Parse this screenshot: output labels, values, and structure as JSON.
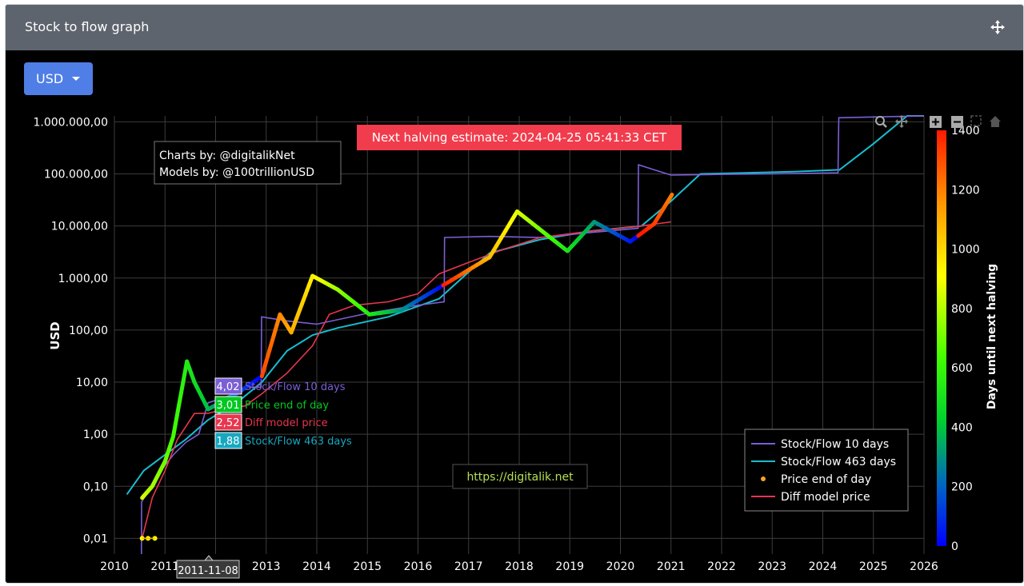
{
  "panel": {
    "title": "Stock to flow graph",
    "move_icon": "move-arrows-icon"
  },
  "currency_button": {
    "label": "USD",
    "icon": "caret-down-icon"
  },
  "modebar": [
    "zoom-icon",
    "pan-icon",
    "zoom-in-icon",
    "zoom-out-icon",
    "autoscale-icon",
    "home-icon"
  ],
  "halving_banner": "Next halving estimate: 2024-04-25 05:41:33 CET",
  "credits": [
    "Charts by: @digitalikNet",
    "Models by: @100trillionUSD"
  ],
  "watermark": "https://digitalik.net",
  "hover": {
    "date": "2011-11-08",
    "items": [
      {
        "value": "4,02",
        "label": "Stock/Flow 10 days",
        "color": "#7b5fd6"
      },
      {
        "value": "3,01",
        "label": "Price end of day",
        "color": "#00c820"
      },
      {
        "value": "2,52",
        "label": "Diff model price",
        "color": "#e8364e"
      },
      {
        "value": "1,88",
        "label": "Stock/Flow 463 days",
        "color": "#17a8c0"
      }
    ]
  },
  "colors": {
    "sf10": "#7b5fd6",
    "sf463": "#17becf",
    "diff": "#e8364e",
    "dot": "#f5a623",
    "halving_banner_bg": "#f03c4c"
  },
  "chart_data": {
    "type": "line",
    "ylabel": "USD",
    "y_scale": "log",
    "ylim": [
      0.005,
      1300000
    ],
    "xlim": [
      "2010-01-01",
      "2026-01-01"
    ],
    "x_ticks": [
      "2010",
      "2011",
      "2012",
      "2013",
      "2014",
      "2015",
      "2016",
      "2017",
      "2018",
      "2019",
      "2020",
      "2021",
      "2022",
      "2023",
      "2024",
      "2025",
      "2026"
    ],
    "y_ticks": [
      {
        "value": 0.01,
        "label": "0,01"
      },
      {
        "value": 0.1,
        "label": "0,10"
      },
      {
        "value": 1,
        "label": "1,00"
      },
      {
        "value": 10,
        "label": "10,00"
      },
      {
        "value": 100,
        "label": "100,00"
      },
      {
        "value": 1000,
        "label": "1.000,00"
      },
      {
        "value": 10000,
        "label": "10.000,00"
      },
      {
        "value": 100000,
        "label": "100.000,00"
      },
      {
        "value": 1000000,
        "label": "1.000.000,00"
      }
    ],
    "grid": true,
    "legend_position": "bottom-right",
    "colorbar": {
      "title": "Days until next halving",
      "range": [
        0,
        1400
      ],
      "ticks": [
        0,
        200,
        400,
        600,
        800,
        1000,
        1200,
        1400
      ]
    },
    "series": [
      {
        "name": "Stock/Flow 10 days",
        "points": [
          [
            "2010-07-15",
            0.005
          ],
          [
            "2010-07-16",
            0.05
          ],
          [
            "2010-09-01",
            0.08
          ],
          [
            "2010-12-01",
            0.2
          ],
          [
            "2011-03-01",
            0.4
          ],
          [
            "2011-06-01",
            0.7
          ],
          [
            "2011-09-01",
            1.0
          ],
          [
            "2011-11-08",
            4.02
          ],
          [
            "2012-03-01",
            5
          ],
          [
            "2012-09-01",
            8
          ],
          [
            "2012-11-25",
            8
          ],
          [
            "2012-11-29",
            180
          ],
          [
            "2013-06-01",
            150
          ],
          [
            "2014-01-01",
            130
          ],
          [
            "2015-01-01",
            210
          ],
          [
            "2016-01-01",
            300
          ],
          [
            "2016-07-08",
            350
          ],
          [
            "2016-07-11",
            6000
          ],
          [
            "2017-06-01",
            6300
          ],
          [
            "2018-06-01",
            6000
          ],
          [
            "2019-06-01",
            7500
          ],
          [
            "2020-05-08",
            9000
          ],
          [
            "2020-05-11",
            150000
          ],
          [
            "2020-09-01",
            120000
          ],
          [
            "2021-01-01",
            95000
          ],
          [
            "2022-01-01",
            98000
          ],
          [
            "2023-01-01",
            100000
          ],
          [
            "2024-04-20",
            105000
          ],
          [
            "2024-04-26",
            1200000
          ],
          [
            "2026-01-01",
            1300000
          ]
        ]
      },
      {
        "name": "Stock/Flow 463 days",
        "points": [
          [
            "2010-04-01",
            0.07
          ],
          [
            "2010-08-01",
            0.2
          ],
          [
            "2010-12-01",
            0.35
          ],
          [
            "2011-06-01",
            0.8
          ],
          [
            "2011-11-08",
            1.88
          ],
          [
            "2012-06-01",
            4
          ],
          [
            "2012-12-01",
            10
          ],
          [
            "2013-06-01",
            40
          ],
          [
            "2013-12-01",
            80
          ],
          [
            "2014-06-01",
            110
          ],
          [
            "2015-06-01",
            180
          ],
          [
            "2016-06-01",
            400
          ],
          [
            "2017-06-01",
            3000
          ],
          [
            "2018-06-01",
            5500
          ],
          [
            "2019-06-01",
            8000
          ],
          [
            "2020-06-01",
            10000
          ],
          [
            "2021-01-01",
            30000
          ],
          [
            "2021-08-01",
            100000
          ],
          [
            "2022-06-01",
            104000
          ],
          [
            "2023-06-01",
            110000
          ],
          [
            "2024-05-01",
            120000
          ],
          [
            "2025-01-01",
            380000
          ],
          [
            "2025-09-01",
            1300000
          ],
          [
            "2026-01-01",
            1300000
          ]
        ]
      },
      {
        "name": "Diff model price",
        "points": [
          [
            "2010-07-20",
            0.01
          ],
          [
            "2010-10-01",
            0.06
          ],
          [
            "2011-01-01",
            0.2
          ],
          [
            "2011-04-01",
            0.8
          ],
          [
            "2011-08-01",
            2.5
          ],
          [
            "2011-11-08",
            2.52
          ],
          [
            "2012-03-01",
            3
          ],
          [
            "2012-08-01",
            3.5
          ],
          [
            "2012-12-01",
            6
          ],
          [
            "2013-06-01",
            15
          ],
          [
            "2013-12-01",
            50
          ],
          [
            "2014-04-01",
            200
          ],
          [
            "2014-10-01",
            300
          ],
          [
            "2015-06-01",
            350
          ],
          [
            "2016-01-01",
            500
          ],
          [
            "2016-06-01",
            1200
          ],
          [
            "2017-01-01",
            2000
          ],
          [
            "2017-09-01",
            3500
          ],
          [
            "2018-06-01",
            6000
          ],
          [
            "2019-06-01",
            8000
          ],
          [
            "2020-06-01",
            10000
          ],
          [
            "2021-01-01",
            12000
          ]
        ]
      },
      {
        "name": "Price end of day",
        "points": [
          [
            "2010-07-20",
            0.06
          ],
          [
            "2010-10-01",
            0.1
          ],
          [
            "2011-01-01",
            0.3
          ],
          [
            "2011-03-01",
            0.9
          ],
          [
            "2011-06-08",
            25
          ],
          [
            "2011-08-01",
            10
          ],
          [
            "2011-11-08",
            3.01
          ],
          [
            "2012-06-01",
            6
          ],
          [
            "2012-12-01",
            13
          ],
          [
            "2013-04-10",
            200
          ],
          [
            "2013-07-01",
            90
          ],
          [
            "2013-12-01",
            1100
          ],
          [
            "2014-06-01",
            600
          ],
          [
            "2015-01-15",
            200
          ],
          [
            "2015-09-01",
            240
          ],
          [
            "2016-06-01",
            650
          ],
          [
            "2017-06-01",
            2500
          ],
          [
            "2017-12-17",
            19000
          ],
          [
            "2018-12-15",
            3300
          ],
          [
            "2019-06-26",
            12000
          ],
          [
            "2020-03-12",
            5000
          ],
          [
            "2020-09-01",
            11000
          ],
          [
            "2021-01-08",
            40000
          ]
        ]
      },
      {
        "name": "Price end of day (early)",
        "points": [
          [
            "2010-07-20",
            0.01
          ],
          [
            "2010-09-01",
            0.01
          ],
          [
            "2010-10-20",
            0.01
          ]
        ]
      }
    ]
  }
}
